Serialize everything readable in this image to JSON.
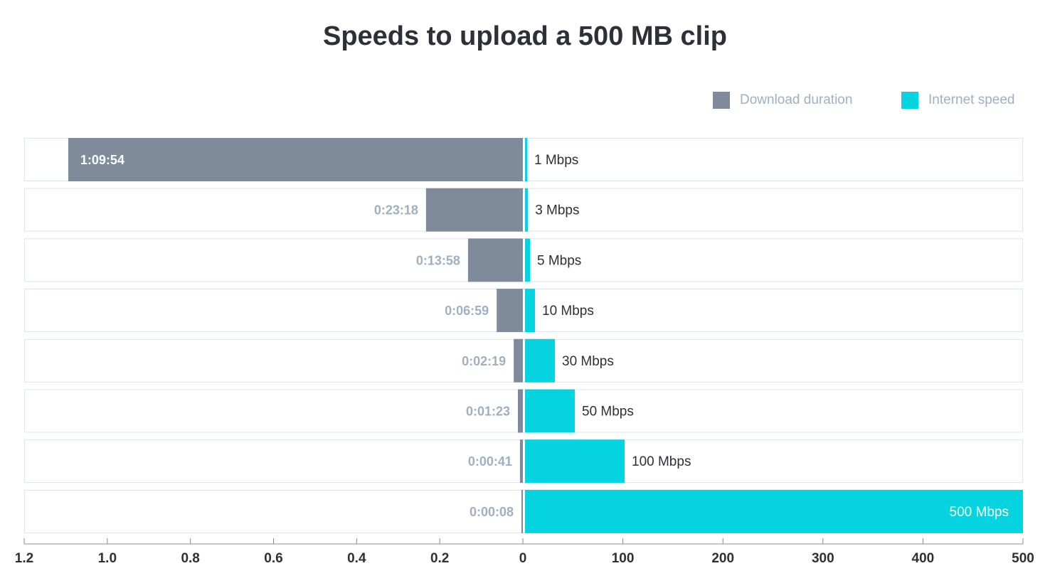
{
  "chart_data": {
    "type": "bar",
    "title": "Speeds to upload a 500 MB clip",
    "legend": {
      "position": "top-right",
      "entries": [
        "Download duration",
        "Internet speed"
      ]
    },
    "colors": {
      "duration": "#7f8a9a",
      "speed": "#05d4e0",
      "duration_label": "#9fb0c2",
      "speed_label": "#2f2f37",
      "row_border": "#dde4ec",
      "axis": "#c8c8c8"
    },
    "rows": [
      {
        "duration_label": "1:09:54",
        "duration_value": 1.094,
        "speed_label": "1 Mbps",
        "speed_value": 1
      },
      {
        "duration_label": "0:23:18",
        "duration_value": 0.233,
        "speed_label": "3 Mbps",
        "speed_value": 3
      },
      {
        "duration_label": "0:13:58",
        "duration_value": 0.132,
        "speed_label": "5 Mbps",
        "speed_value": 5
      },
      {
        "duration_label": "0:06:59",
        "duration_value": 0.063,
        "speed_label": "10 Mbps",
        "speed_value": 10
      },
      {
        "duration_label": "0:02:19",
        "duration_value": 0.022,
        "speed_label": "30 Mbps",
        "speed_value": 30
      },
      {
        "duration_label": "0:01:23",
        "duration_value": 0.012,
        "speed_label": "50 Mbps",
        "speed_value": 50
      },
      {
        "duration_label": "0:00:41",
        "duration_value": 0.007,
        "speed_label": "100 Mbps",
        "speed_value": 100
      },
      {
        "duration_label": "0:00:08",
        "duration_value": 0.001,
        "speed_label": "500 Mbps",
        "speed_value": 500
      }
    ],
    "left_axis": {
      "range": [
        1.2,
        0
      ],
      "ticks": [
        "1.2",
        "1.0",
        "0.8",
        "0.6",
        "0.4",
        "0.2",
        "0"
      ],
      "tick_values": [
        1.2,
        1.0,
        0.8,
        0.6,
        0.4,
        0.2,
        0
      ]
    },
    "right_axis": {
      "range": [
        0,
        500
      ],
      "ticks": [
        "100",
        "200",
        "300",
        "400",
        "500"
      ],
      "tick_values": [
        100,
        200,
        300,
        400,
        500
      ]
    }
  }
}
